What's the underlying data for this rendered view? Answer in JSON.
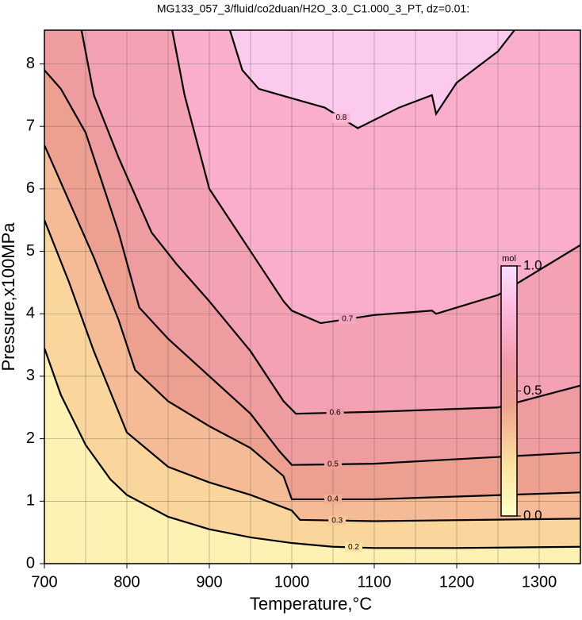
{
  "chart_data": {
    "type": "contour",
    "title": "MG133_057_3/fluid/co2duan/H2O_3.0_C1.000_3_PT, dz=0.01:",
    "xlabel": "Temperature,°C",
    "ylabel": "Pressure,x100MPa",
    "xlim": [
      700,
      1350
    ],
    "ylim": [
      0,
      8.54
    ],
    "xticks": [
      700,
      800,
      900,
      1000,
      1100,
      1200,
      1300
    ],
    "xgrid": [
      700,
      750,
      800,
      850,
      900,
      950,
      1000,
      1050,
      1100,
      1150,
      1200,
      1250,
      1300,
      1350
    ],
    "yticks": [
      0,
      1,
      2,
      3,
      4,
      5,
      6,
      7,
      8
    ],
    "grid": true,
    "line_color": "#000000",
    "colormap": {
      "stops": [
        0,
        0.2,
        0.45,
        0.6,
        0.8,
        1
      ],
      "colors": [
        "#ffffc8",
        "#fde3a0",
        "#eea090",
        "#f09aa8",
        "#ffb4d8",
        "#f8e0ff"
      ]
    },
    "contours": [
      {
        "level": 0.2,
        "x": [
          700,
          720,
          750,
          780,
          800,
          850,
          900,
          950,
          1000,
          1050,
          1100,
          1200,
          1350
        ],
        "y": [
          3.45,
          2.7,
          1.9,
          1.35,
          1.1,
          0.75,
          0.55,
          0.42,
          0.33,
          0.27,
          0.25,
          0.25,
          0.27
        ]
      },
      {
        "level": 0.3,
        "x": [
          700,
          730,
          760,
          800,
          850,
          900,
          950,
          1000,
          1010,
          1100,
          1350
        ],
        "y": [
          5.5,
          4.5,
          3.4,
          2.1,
          1.55,
          1.3,
          1.1,
          0.85,
          0.7,
          0.68,
          0.72
        ]
      },
      {
        "level": 0.4,
        "x": [
          700,
          730,
          760,
          790,
          810,
          850,
          900,
          950,
          990,
          1000,
          1100,
          1350
        ],
        "y": [
          6.7,
          5.8,
          4.9,
          3.9,
          3.1,
          2.6,
          2.2,
          1.85,
          1.4,
          1.03,
          1.03,
          1.14
        ]
      },
      {
        "level": 0.5,
        "x": [
          700,
          720,
          750,
          790,
          815,
          850,
          900,
          950,
          985,
          1000,
          1100,
          1350
        ],
        "y": [
          7.9,
          7.6,
          6.9,
          5.3,
          4.1,
          3.6,
          3.0,
          2.4,
          1.8,
          1.58,
          1.6,
          1.78
        ]
      },
      {
        "level": 0.6,
        "x": [
          745,
          760,
          790,
          830,
          860,
          900,
          950,
          990,
          1005,
          1100,
          1250,
          1350
        ],
        "y": [
          8.54,
          7.5,
          6.5,
          5.3,
          4.8,
          4.2,
          3.4,
          2.6,
          2.4,
          2.43,
          2.5,
          2.85
        ]
      },
      {
        "level": 0.7,
        "x": [
          855,
          870,
          900,
          950,
          990,
          1000,
          1035,
          1100,
          1170,
          1175,
          1250,
          1350
        ],
        "y": [
          8.54,
          7.5,
          6.0,
          5.0,
          4.2,
          4.05,
          3.85,
          3.98,
          4.05,
          4.0,
          4.3,
          5.1
        ]
      },
      {
        "level": 0.8,
        "x": [
          925,
          940,
          960,
          1000,
          1040,
          1080,
          1130,
          1170,
          1175,
          1200,
          1250,
          1270
        ],
        "y": [
          8.54,
          7.9,
          7.6,
          7.45,
          7.3,
          6.97,
          7.3,
          7.5,
          7.2,
          7.7,
          8.2,
          8.54
        ]
      }
    ],
    "colorbar": {
      "label": "mol",
      "lim": [
        0,
        1
      ],
      "ticks": [
        {
          "value": 0,
          "label": "0.0"
        },
        0.5,
        {
          "value": 1,
          "label": "1.0"
        }
      ]
    }
  }
}
